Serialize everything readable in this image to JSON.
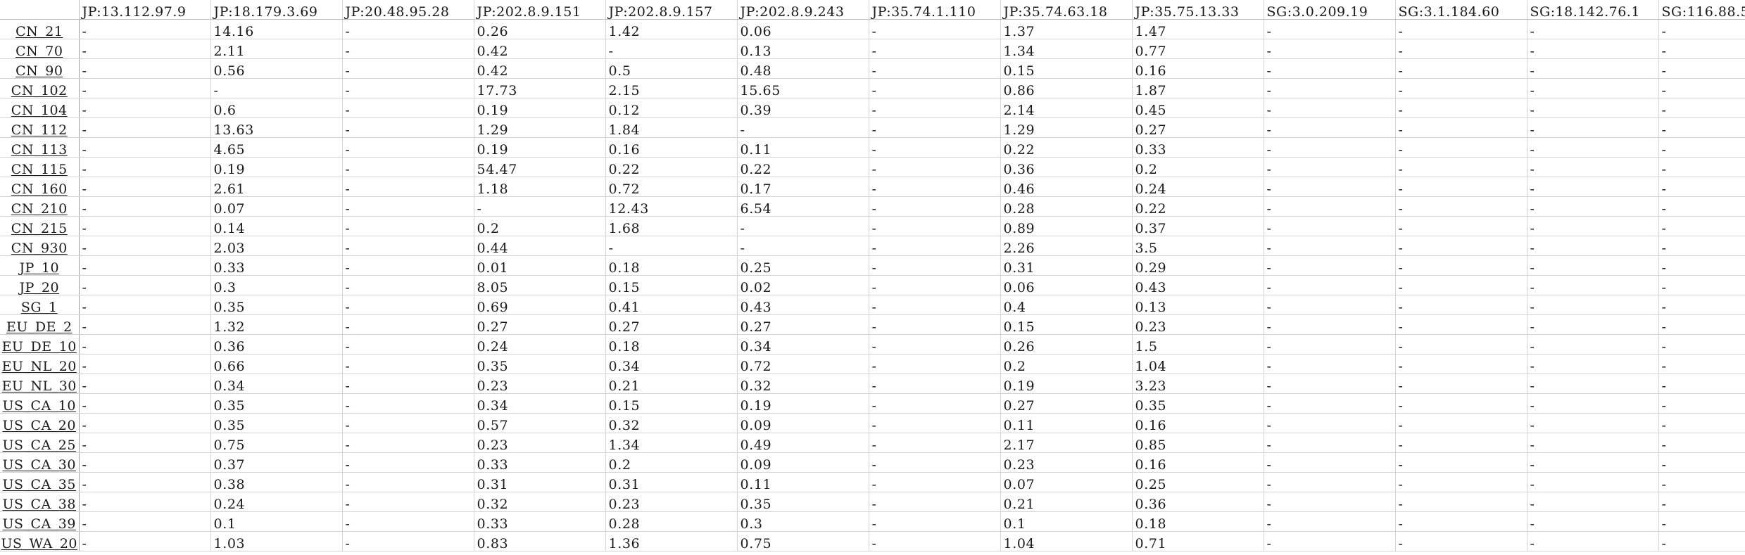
{
  "columns": [
    "JP:13.112.97.9",
    "JP:18.179.3.69",
    "JP:20.48.95.28",
    "JP:202.8.9.151",
    "JP:202.8.9.157",
    "JP:202.8.9.243",
    "JP:35.74.1.110",
    "JP:35.74.63.18",
    "JP:35.75.13.33",
    "SG:3.0.209.19",
    "SG:3.1.184.60",
    "SG:18.142.76.1",
    "SG:116.88.5"
  ],
  "rows": [
    {
      "label": "CN_21",
      "cells": [
        "-",
        "14.16",
        "-",
        "0.26",
        "1.42",
        "0.06",
        "-",
        "1.37",
        "1.47",
        "-",
        "-",
        "-",
        "-"
      ]
    },
    {
      "label": "CN_70",
      "cells": [
        "-",
        "2.11",
        "-",
        "0.42",
        "-",
        "0.13",
        "-",
        "1.34",
        "0.77",
        "-",
        "-",
        "-",
        "-"
      ]
    },
    {
      "label": "CN_90",
      "cells": [
        "-",
        "0.56",
        "-",
        "0.42",
        "0.5",
        "0.48",
        "-",
        "0.15",
        "0.16",
        "-",
        "-",
        "-",
        "-"
      ]
    },
    {
      "label": "CN_102",
      "cells": [
        "-",
        "-",
        "-",
        "17.73",
        "2.15",
        "15.65",
        "-",
        "0.86",
        "1.87",
        "-",
        "-",
        "-",
        "-"
      ]
    },
    {
      "label": "CN_104",
      "cells": [
        "-",
        "0.6",
        "-",
        "0.19",
        "0.12",
        "0.39",
        "-",
        "2.14",
        "0.45",
        "-",
        "-",
        "-",
        "-"
      ]
    },
    {
      "label": "CN_112",
      "cells": [
        "-",
        "13.63",
        "-",
        "1.29",
        "1.84",
        "-",
        "-",
        "1.29",
        "0.27",
        "-",
        "-",
        "-",
        "-"
      ]
    },
    {
      "label": "CN_113",
      "cells": [
        "-",
        "4.65",
        "-",
        "0.19",
        "0.16",
        "0.11",
        "-",
        "0.22",
        "0.33",
        "-",
        "-",
        "-",
        "-"
      ]
    },
    {
      "label": "CN_115",
      "cells": [
        "-",
        "0.19",
        "-",
        "54.47",
        "0.22",
        "0.22",
        "-",
        "0.36",
        "0.2",
        "-",
        "-",
        "-",
        "-"
      ]
    },
    {
      "label": "CN_160",
      "cells": [
        "-",
        "2.61",
        "-",
        "1.18",
        "0.72",
        "0.17",
        "-",
        "0.46",
        "0.24",
        "-",
        "-",
        "-",
        "-"
      ]
    },
    {
      "label": "CN_210",
      "cells": [
        "-",
        "0.07",
        "-",
        "-",
        "12.43",
        "6.54",
        "-",
        "0.28",
        "0.22",
        "-",
        "-",
        "-",
        "-"
      ]
    },
    {
      "label": "CN_215",
      "cells": [
        "-",
        "0.14",
        "-",
        "0.2",
        "1.68",
        "-",
        "-",
        "0.89",
        "0.37",
        "-",
        "-",
        "-",
        "-"
      ]
    },
    {
      "label": "CN_930",
      "cells": [
        "-",
        "2.03",
        "-",
        "0.44",
        "-",
        "-",
        "-",
        "2.26",
        "3.5",
        "-",
        "-",
        "-",
        "-"
      ]
    },
    {
      "label": "JP_10",
      "cells": [
        "-",
        "0.33",
        "-",
        "0.01",
        "0.18",
        "0.25",
        "-",
        "0.31",
        "0.29",
        "-",
        "-",
        "-",
        "-"
      ]
    },
    {
      "label": "JP_20",
      "cells": [
        "-",
        "0.3",
        "-",
        "8.05",
        "0.15",
        "0.02",
        "-",
        "0.06",
        "0.43",
        "-",
        "-",
        "-",
        "-"
      ]
    },
    {
      "label": "SG_1",
      "cells": [
        "-",
        "0.35",
        "-",
        "0.69",
        "0.41",
        "0.43",
        "-",
        "0.4",
        "0.13",
        "-",
        "-",
        "-",
        "-"
      ]
    },
    {
      "label": "EU_DE_2",
      "cells": [
        "-",
        "1.32",
        "-",
        "0.27",
        "0.27",
        "0.27",
        "-",
        "0.15",
        "0.23",
        "-",
        "-",
        "-",
        "-"
      ]
    },
    {
      "label": "EU_DE_10",
      "cells": [
        "-",
        "0.36",
        "-",
        "0.24",
        "0.18",
        "0.34",
        "-",
        "0.26",
        "1.5",
        "-",
        "-",
        "-",
        "-"
      ]
    },
    {
      "label": "EU_NL_20",
      "cells": [
        "-",
        "0.66",
        "-",
        "0.35",
        "0.34",
        "0.72",
        "-",
        "0.2",
        "1.04",
        "-",
        "-",
        "-",
        "-"
      ]
    },
    {
      "label": "EU_NL_30",
      "cells": [
        "-",
        "0.34",
        "-",
        "0.23",
        "0.21",
        "0.32",
        "-",
        "0.19",
        "3.23",
        "-",
        "-",
        "-",
        "-"
      ]
    },
    {
      "label": "US_CA_10",
      "cells": [
        "-",
        "0.35",
        "-",
        "0.34",
        "0.15",
        "0.19",
        "-",
        "0.27",
        "0.35",
        "-",
        "-",
        "-",
        "-"
      ]
    },
    {
      "label": "US_CA_20",
      "cells": [
        "-",
        "0.35",
        "-",
        "0.57",
        "0.32",
        "0.09",
        "-",
        "0.11",
        "0.16",
        "-",
        "-",
        "-",
        "-"
      ]
    },
    {
      "label": "US_CA_25",
      "cells": [
        "-",
        "0.75",
        "-",
        "0.23",
        "1.34",
        "0.49",
        "-",
        "2.17",
        "0.85",
        "-",
        "-",
        "-",
        "-"
      ]
    },
    {
      "label": "US_CA_30",
      "cells": [
        "-",
        "0.37",
        "-",
        "0.33",
        "0.2",
        "0.09",
        "-",
        "0.23",
        "0.16",
        "-",
        "-",
        "-",
        "-"
      ]
    },
    {
      "label": "US_CA_35",
      "cells": [
        "-",
        "0.38",
        "-",
        "0.31",
        "0.31",
        "0.11",
        "-",
        "0.07",
        "0.25",
        "-",
        "-",
        "-",
        "-"
      ]
    },
    {
      "label": "US_CA_38",
      "cells": [
        "-",
        "0.24",
        "-",
        "0.32",
        "0.23",
        "0.35",
        "-",
        "0.21",
        "0.36",
        "-",
        "-",
        "-",
        "-"
      ]
    },
    {
      "label": "US_CA_39",
      "cells": [
        "-",
        "0.1",
        "-",
        "0.33",
        "0.28",
        "0.3",
        "-",
        "0.1",
        "0.18",
        "-",
        "-",
        "-",
        "-"
      ]
    },
    {
      "label": "US_WA_20",
      "cells": [
        "-",
        "1.03",
        "-",
        "0.83",
        "1.36",
        "0.75",
        "-",
        "1.04",
        "0.71",
        "-",
        "-",
        "-",
        "-"
      ]
    }
  ]
}
